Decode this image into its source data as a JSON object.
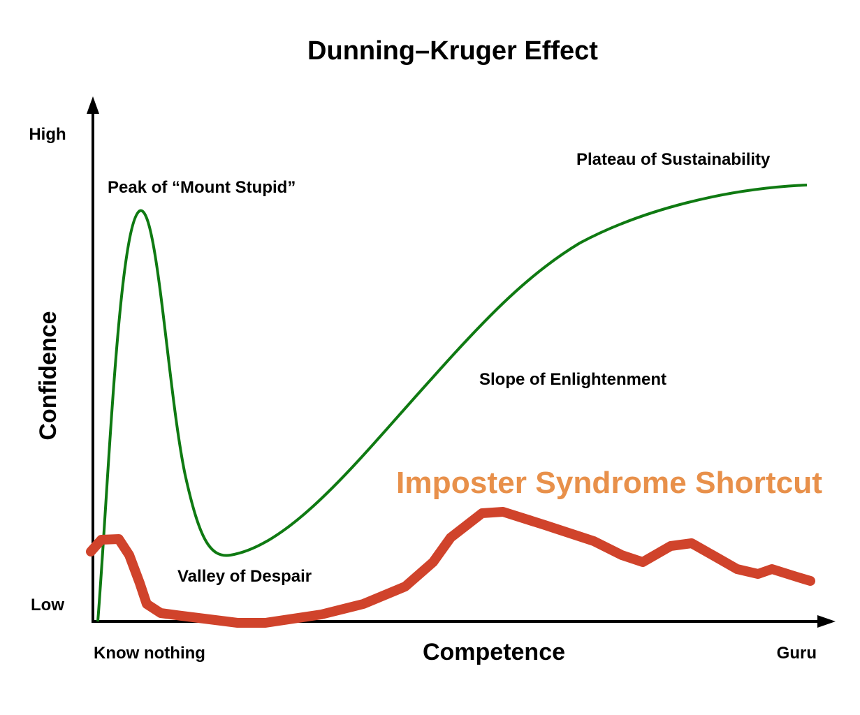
{
  "title": "Dunning–Kruger Effect",
  "axes": {
    "y_label": "Confidence",
    "x_label": "Competence",
    "y_high": "High",
    "y_low": "Low",
    "x_start": "Know nothing",
    "x_end": "Guru"
  },
  "annotations": {
    "peak": "Peak of “Mount Stupid”",
    "valley": "Valley of Despair",
    "slope": "Slope of Enlightenment",
    "plateau": "Plateau of Sustainability",
    "shortcut": "Imposter Syndrome Shortcut"
  }
}
